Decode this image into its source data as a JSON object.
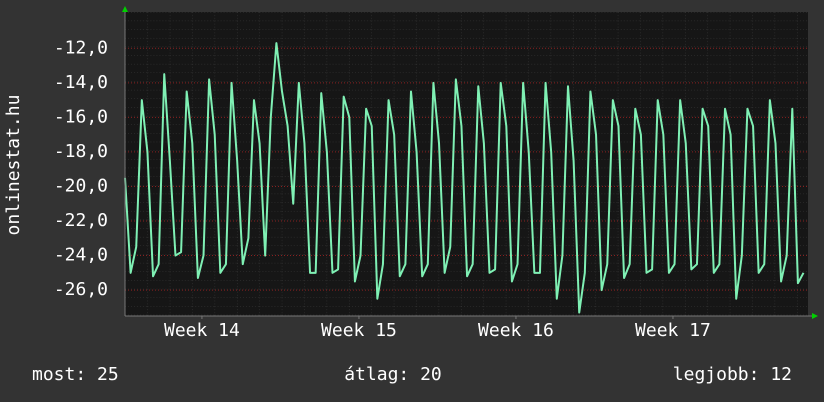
{
  "chart_data": {
    "type": "line",
    "y_axis_label": "onlinestat.hu",
    "x": [
      0,
      0.25,
      0.5,
      0.75,
      1,
      1.25,
      1.5,
      1.75,
      2,
      2.25,
      2.5,
      2.75,
      3,
      3.25,
      3.5,
      3.75,
      4,
      4.25,
      4.5,
      4.75,
      5,
      5.25,
      5.5,
      5.75,
      6,
      6.25,
      6.5,
      6.75,
      7,
      7.25,
      7.5,
      7.75,
      8,
      8.25,
      8.5,
      8.75,
      9,
      9.25,
      9.5,
      9.75,
      10,
      10.25,
      10.5,
      10.75,
      11,
      11.25,
      11.5,
      11.75,
      12,
      12.25,
      12.5,
      12.75,
      13,
      13.25,
      13.5,
      13.75,
      14,
      14.25,
      14.5,
      14.75,
      15,
      15.25,
      15.5,
      15.75,
      16,
      16.25,
      16.5,
      16.75,
      17,
      17.25,
      17.5,
      17.75,
      18,
      18.25,
      18.5,
      18.75,
      19,
      19.25,
      19.5,
      19.75,
      20,
      20.25,
      20.5,
      20.75,
      21,
      21.25,
      21.5,
      21.75,
      22,
      22.25,
      22.5,
      22.75,
      23,
      23.25,
      23.5,
      23.75,
      24,
      24.25,
      24.5,
      24.75,
      25,
      25.25,
      25.5,
      25.75,
      26,
      26.25,
      26.5,
      26.75,
      27,
      27.25,
      27.5,
      27.75,
      28,
      28.25,
      28.5,
      28.75,
      29,
      29.25,
      29.5,
      29.75,
      30,
      30.25
    ],
    "series": [
      {
        "color": "#7ff0b4",
        "values": [
          -19.5,
          -25.0,
          -23.5,
          -15.0,
          -18.0,
          -25.2,
          -24.5,
          -13.5,
          -18.5,
          -24.0,
          -23.8,
          -14.5,
          -17.5,
          -25.3,
          -24.0,
          -13.8,
          -17.0,
          -25.0,
          -24.5,
          -14.0,
          -18.5,
          -24.5,
          -23.0,
          -15.0,
          -17.5,
          -24.0,
          -16.0,
          -11.7,
          -14.5,
          -16.5,
          -21.0,
          -14.0,
          -17.5,
          -25.0,
          -25.0,
          -14.6,
          -18.0,
          -25.0,
          -24.8,
          -14.8,
          -16.0,
          -25.5,
          -24.0,
          -15.5,
          -16.5,
          -26.5,
          -24.5,
          -15.0,
          -17.0,
          -25.2,
          -24.5,
          -14.5,
          -18.0,
          -25.2,
          -24.5,
          -14.0,
          -17.5,
          -25.0,
          -23.5,
          -13.8,
          -16.5,
          -25.2,
          -24.5,
          -14.2,
          -17.5,
          -25.0,
          -24.8,
          -14.0,
          -16.5,
          -25.5,
          -24.5,
          -14.0,
          -18.0,
          -25.0,
          -25.0,
          -14.0,
          -18.0,
          -26.5,
          -24.0,
          -14.2,
          -18.5,
          -27.3,
          -25.0,
          -14.5,
          -17.0,
          -26.0,
          -24.5,
          -15.0,
          -16.5,
          -25.3,
          -24.5,
          -15.5,
          -17.0,
          -25.0,
          -24.8,
          -15.0,
          -17.0,
          -25.0,
          -24.5,
          -15.0,
          -17.5,
          -24.8,
          -24.5,
          -15.5,
          -16.5,
          -25.0,
          -24.5,
          -15.5,
          -17.0,
          -26.5,
          -24.0,
          -15.5,
          -16.5,
          -25.0,
          -24.5,
          -15.0,
          -17.5,
          -25.5,
          -24.0,
          -15.5,
          -25.6,
          -25.0
        ]
      }
    ],
    "xlim": [
      0,
      30.45
    ],
    "xticks": [
      {
        "value": 3.43,
        "label": "Week 14"
      },
      {
        "value": 10.43,
        "label": "Week 15"
      },
      {
        "value": 17.43,
        "label": "Week 16"
      },
      {
        "value": 24.43,
        "label": "Week 17"
      }
    ],
    "ylim": [
      -27.5,
      -9.9
    ],
    "yticks": [
      {
        "value": -26,
        "label": "-26,0"
      },
      {
        "value": -24,
        "label": "-24,0"
      },
      {
        "value": -22,
        "label": "-22,0"
      },
      {
        "value": -20,
        "label": "-20,0"
      },
      {
        "value": -18,
        "label": "-18,0"
      },
      {
        "value": -16,
        "label": "-16,0"
      },
      {
        "value": -14,
        "label": "-14,0"
      },
      {
        "value": -12,
        "label": "-12,0"
      }
    ],
    "grid": true
  },
  "footer": [
    "most: 25",
    "átlag: 20",
    "legjobb: 12"
  ]
}
